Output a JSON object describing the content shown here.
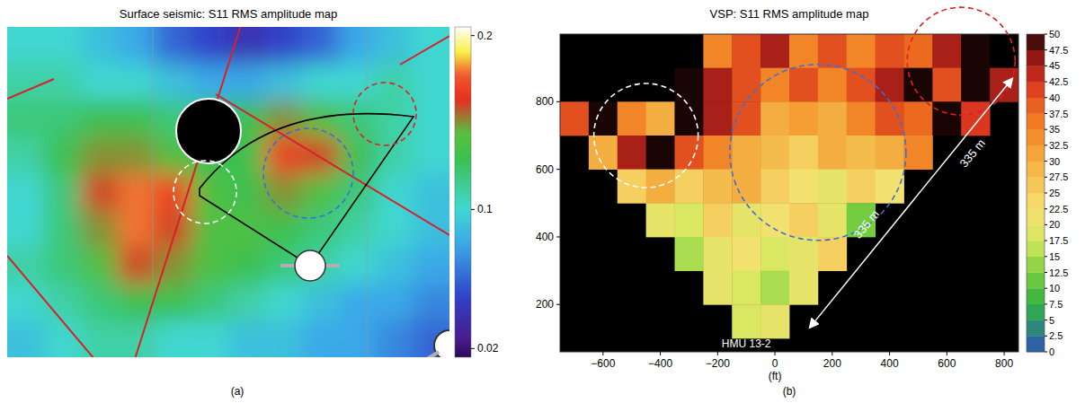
{
  "chart_data": [
    {
      "type": "heatmap",
      "title": "Surface seismic: S11 RMS amplitude map",
      "caption": "(a)",
      "tick_labels": false,
      "cells": [
        [
          0.1,
          0.1,
          0.09,
          0.08,
          0.06,
          0.05,
          0.04,
          0.05,
          0.06,
          0.08,
          0.09,
          0.1
        ],
        [
          0.11,
          0.11,
          0.1,
          0.1,
          0.09,
          0.08,
          0.08,
          0.09,
          0.1,
          0.1,
          0.11,
          0.1
        ],
        [
          0.12,
          0.12,
          0.13,
          0.13,
          0.12,
          0.12,
          0.13,
          0.15,
          0.14,
          0.12,
          0.11,
          0.1
        ],
        [
          0.11,
          0.13,
          0.15,
          0.15,
          0.14,
          0.13,
          0.13,
          0.17,
          0.16,
          0.13,
          0.11,
          0.1
        ],
        [
          0.1,
          0.12,
          0.16,
          0.18,
          0.17,
          0.14,
          0.13,
          0.15,
          0.14,
          0.12,
          0.1,
          0.09
        ],
        [
          0.1,
          0.12,
          0.15,
          0.18,
          0.16,
          0.14,
          0.14,
          0.13,
          0.12,
          0.11,
          0.1,
          0.09
        ],
        [
          0.11,
          0.12,
          0.14,
          0.16,
          0.15,
          0.14,
          0.13,
          0.12,
          0.11,
          0.1,
          0.09,
          0.08
        ],
        [
          0.1,
          0.11,
          0.12,
          0.13,
          0.13,
          0.12,
          0.11,
          0.1,
          0.09,
          0.08,
          0.08,
          0.07
        ],
        [
          0.09,
          0.1,
          0.11,
          0.11,
          0.1,
          0.1,
          0.09,
          0.09,
          0.08,
          0.08,
          0.07,
          0.06
        ]
      ],
      "colorbar": {
        "range": [
          0.015,
          0.205
        ],
        "ticks": [
          0.02,
          0.1,
          0.2
        ]
      }
    },
    {
      "type": "heatmap",
      "title": "VSP: S11 RMS amplitude map",
      "caption": "(b)",
      "xlabel": "(ft)",
      "xlim": [
        -750,
        850
      ],
      "ylim": [
        60,
        1000
      ],
      "xticks": [
        {
          "value": -600,
          "label": "−600"
        },
        {
          "value": -400,
          "label": "−400"
        },
        {
          "value": -200,
          "label": "−200"
        },
        0,
        200,
        400,
        600,
        800
      ],
      "yticks": [
        200,
        400,
        600,
        800
      ],
      "x_edges": [
        -750,
        -650,
        -550,
        -450,
        -350,
        -250,
        -150,
        -50,
        50,
        150,
        250,
        350,
        450,
        550,
        650,
        750,
        850
      ],
      "y_edges": [
        1000,
        900,
        800,
        700,
        600,
        500,
        400,
        300,
        200,
        100
      ],
      "cells": [
        [
          null,
          null,
          null,
          null,
          null,
          35,
          40,
          45,
          35,
          40,
          35,
          40,
          38,
          45,
          50,
          null
        ],
        [
          null,
          null,
          null,
          null,
          50,
          45,
          40,
          35,
          40,
          35,
          40,
          45,
          50,
          40,
          50,
          45
        ],
        [
          40,
          50,
          35,
          30,
          50,
          45,
          40,
          30,
          32,
          30,
          35,
          40,
          38,
          50,
          42,
          null
        ],
        [
          null,
          30,
          45,
          50,
          40,
          35,
          30,
          28,
          25,
          30,
          28,
          30,
          35,
          null,
          null,
          null
        ],
        [
          null,
          null,
          25,
          30,
          25,
          28,
          30,
          25,
          22,
          20,
          25,
          22,
          null,
          null,
          null,
          null
        ],
        [
          null,
          null,
          null,
          20,
          18,
          25,
          20,
          22,
          25,
          20,
          12,
          null,
          null,
          null,
          null,
          null
        ],
        [
          null,
          null,
          null,
          null,
          15,
          20,
          22,
          18,
          20,
          25,
          null,
          null,
          null,
          null,
          null,
          null
        ],
        [
          null,
          null,
          null,
          null,
          null,
          20,
          18,
          15,
          20,
          null,
          null,
          null,
          null,
          null,
          null,
          null
        ],
        [
          null,
          null,
          null,
          null,
          null,
          null,
          18,
          20,
          null,
          null,
          null,
          null,
          null,
          null,
          null,
          null
        ]
      ],
      "colorbar": {
        "range": [
          0,
          50
        ],
        "ticks": [
          0,
          2.5,
          5,
          7.5,
          10,
          12.5,
          15,
          17.5,
          20,
          22.5,
          25,
          27.5,
          30,
          32.5,
          35,
          37.5,
          40,
          42.5,
          45,
          47.5,
          50
        ]
      },
      "annotations": [
        "335 m",
        "335 m",
        "HMU 13-2"
      ]
    }
  ]
}
